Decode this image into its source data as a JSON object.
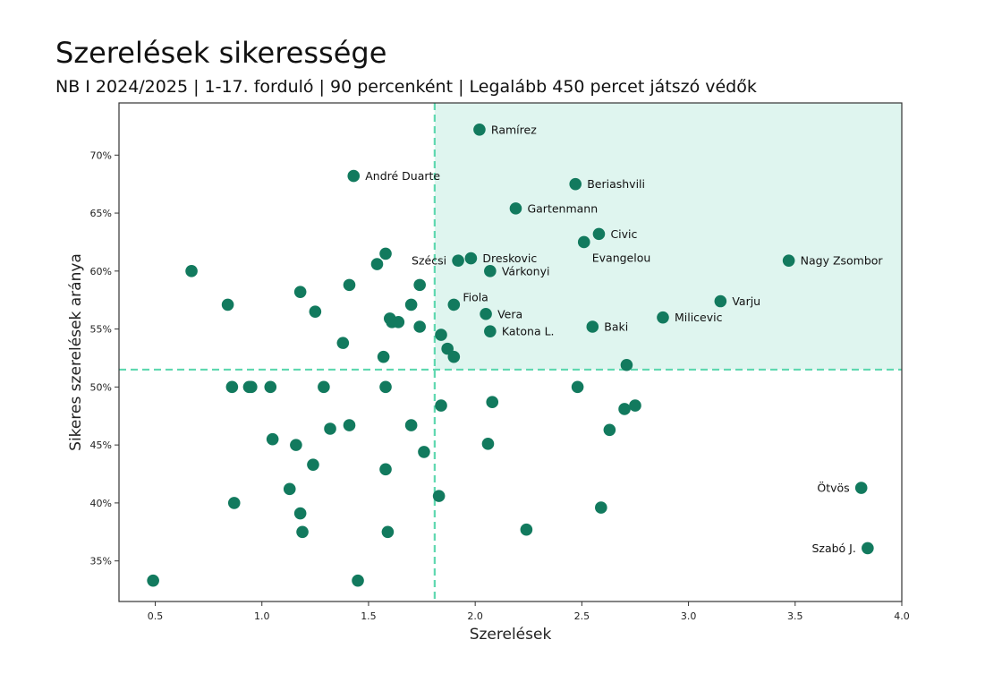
{
  "title": "Szerelések sikeressége",
  "subtitle": "NB I 2024/2025 | 1-17. forduló | 90 percenként | Legalább 450 percet játszó védők",
  "colors": {
    "point": "#127a5e",
    "reference_line": "#5fd8b0",
    "highlight_fill": "#dff5ef",
    "axis": "#333333"
  },
  "chart_data": {
    "type": "scatter",
    "xlabel": "Szerelések",
    "ylabel": "Sikeres szerelések aránya",
    "xlim": [
      0.33,
      4.0
    ],
    "ylim": [
      31.5,
      74.5
    ],
    "x_ticks": [
      {
        "value": 0.5,
        "label": "0.5"
      },
      {
        "value": 1.0,
        "label": "1.0"
      },
      {
        "value": 1.5,
        "label": "1.5"
      },
      {
        "value": 2.0,
        "label": "2.0"
      },
      {
        "value": 2.5,
        "label": "2.5"
      },
      {
        "value": 3.0,
        "label": "3.0"
      },
      {
        "value": 3.5,
        "label": "3.5"
      },
      {
        "value": 4.0,
        "label": "4.0"
      }
    ],
    "y_ticks": [
      {
        "value": 35,
        "label": "35%"
      },
      {
        "value": 40,
        "label": "40%"
      },
      {
        "value": 45,
        "label": "45%"
      },
      {
        "value": 50,
        "label": "50%"
      },
      {
        "value": 55,
        "label": "55%"
      },
      {
        "value": 60,
        "label": "60%"
      },
      {
        "value": 65,
        "label": "65%"
      },
      {
        "value": 70,
        "label": "70%"
      }
    ],
    "reference_lines": {
      "x": 1.81,
      "y": 51.5
    },
    "highlight_quadrant": "top-right",
    "grid": false,
    "labeled_points": [
      {
        "name": "Ramírez",
        "x": 2.02,
        "y": 72.2,
        "label_side": "right"
      },
      {
        "name": "André Duarte",
        "x": 1.43,
        "y": 68.2,
        "label_side": "right"
      },
      {
        "name": "Beriashvili",
        "x": 2.47,
        "y": 67.5,
        "label_side": "right"
      },
      {
        "name": "Gartenmann",
        "x": 2.19,
        "y": 65.4,
        "label_side": "right"
      },
      {
        "name": "Civic",
        "x": 2.58,
        "y": 63.2,
        "label_side": "right"
      },
      {
        "name": "Evangelou",
        "x": 2.51,
        "y": 62.5,
        "label_side": "right-below"
      },
      {
        "name": "Nagy Zsombor",
        "x": 3.47,
        "y": 60.9,
        "label_side": "right"
      },
      {
        "name": "Szécsi",
        "x": 1.92,
        "y": 60.9,
        "label_side": "left"
      },
      {
        "name": "Dreskovic",
        "x": 1.98,
        "y": 61.1,
        "label_side": "right"
      },
      {
        "name": "Várkonyi",
        "x": 2.07,
        "y": 60.0,
        "label_side": "right"
      },
      {
        "name": "Varju",
        "x": 3.15,
        "y": 57.4,
        "label_side": "right"
      },
      {
        "name": "Fiola",
        "x": 1.9,
        "y": 57.1,
        "label_side": "right-above"
      },
      {
        "name": "Vera",
        "x": 2.05,
        "y": 56.3,
        "label_side": "right"
      },
      {
        "name": "Milicevic",
        "x": 2.88,
        "y": 56.0,
        "label_side": "right"
      },
      {
        "name": "Baki",
        "x": 2.55,
        "y": 55.2,
        "label_side": "right"
      },
      {
        "name": "Katona L.",
        "x": 2.07,
        "y": 54.8,
        "label_side": "right"
      },
      {
        "name": "Ötvös",
        "x": 3.81,
        "y": 41.3,
        "label_side": "left"
      },
      {
        "name": "Szabó J.",
        "x": 3.84,
        "y": 36.1,
        "label_side": "left"
      }
    ],
    "unlabeled_points": [
      {
        "x": 0.49,
        "y": 33.3
      },
      {
        "x": 0.67,
        "y": 60.0
      },
      {
        "x": 0.84,
        "y": 57.1
      },
      {
        "x": 0.86,
        "y": 50.0
      },
      {
        "x": 0.87,
        "y": 40.0
      },
      {
        "x": 0.94,
        "y": 50.0
      },
      {
        "x": 0.95,
        "y": 50.0
      },
      {
        "x": 1.04,
        "y": 50.0
      },
      {
        "x": 1.05,
        "y": 45.5
      },
      {
        "x": 1.13,
        "y": 41.2
      },
      {
        "x": 1.16,
        "y": 45.0
      },
      {
        "x": 1.18,
        "y": 58.2
      },
      {
        "x": 1.18,
        "y": 39.1
      },
      {
        "x": 1.19,
        "y": 37.5
      },
      {
        "x": 1.24,
        "y": 43.3
      },
      {
        "x": 1.25,
        "y": 56.5
      },
      {
        "x": 1.29,
        "y": 50.0
      },
      {
        "x": 1.32,
        "y": 46.4
      },
      {
        "x": 1.38,
        "y": 53.8
      },
      {
        "x": 1.41,
        "y": 58.8
      },
      {
        "x": 1.41,
        "y": 46.7
      },
      {
        "x": 1.45,
        "y": 33.3
      },
      {
        "x": 1.54,
        "y": 60.6
      },
      {
        "x": 1.57,
        "y": 52.6
      },
      {
        "x": 1.58,
        "y": 61.5
      },
      {
        "x": 1.58,
        "y": 50.0
      },
      {
        "x": 1.58,
        "y": 42.9
      },
      {
        "x": 1.59,
        "y": 37.5
      },
      {
        "x": 1.6,
        "y": 55.9
      },
      {
        "x": 1.61,
        "y": 55.6
      },
      {
        "x": 1.64,
        "y": 55.6
      },
      {
        "x": 1.7,
        "y": 57.1
      },
      {
        "x": 1.7,
        "y": 46.7
      },
      {
        "x": 1.74,
        "y": 58.8
      },
      {
        "x": 1.74,
        "y": 55.2
      },
      {
        "x": 1.76,
        "y": 44.4
      },
      {
        "x": 1.83,
        "y": 40.6
      },
      {
        "x": 1.84,
        "y": 54.5
      },
      {
        "x": 1.84,
        "y": 48.4
      },
      {
        "x": 1.87,
        "y": 53.3
      },
      {
        "x": 1.9,
        "y": 52.6
      },
      {
        "x": 2.06,
        "y": 45.1
      },
      {
        "x": 2.08,
        "y": 48.7
      },
      {
        "x": 2.24,
        "y": 37.7
      },
      {
        "x": 2.48,
        "y": 50.0
      },
      {
        "x": 2.59,
        "y": 39.6
      },
      {
        "x": 2.63,
        "y": 46.3
      },
      {
        "x": 2.7,
        "y": 48.1
      },
      {
        "x": 2.71,
        "y": 51.9
      },
      {
        "x": 2.75,
        "y": 48.4
      }
    ]
  }
}
